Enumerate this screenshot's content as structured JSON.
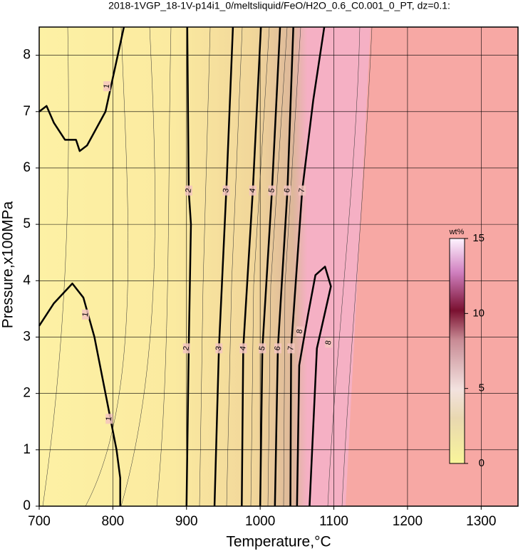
{
  "chart_data": {
    "type": "contour",
    "title": "2018-1VGP_18-1V-p14i1_0/meltsliquid/FeO/H2O_0.6_C0.001_0_PT, dz=0.1:",
    "xlabel": "Temperature,°C",
    "ylabel": "Pressure,x100MPa",
    "xlim": [
      700,
      1350
    ],
    "ylim": [
      0,
      8.5
    ],
    "xticks": [
      700,
      800,
      900,
      1000,
      1100,
      1200,
      1300
    ],
    "yticks": [
      0,
      1,
      2,
      3,
      4,
      5,
      6,
      7,
      8
    ],
    "grid": true,
    "contours": [
      {
        "level": 1,
        "x": [
          700,
          710,
          720,
          735,
          750,
          755,
          765,
          790,
          815
        ],
        "y": [
          7.0,
          7.1,
          6.8,
          6.5,
          6.5,
          6.3,
          6.4,
          7.0,
          8.5
        ]
      },
      {
        "level": 1,
        "x": [
          700,
          720,
          745,
          760,
          775,
          790,
          805,
          810,
          810
        ],
        "y": [
          3.2,
          3.6,
          3.95,
          3.7,
          3.0,
          2.0,
          1.0,
          0.5,
          0
        ]
      },
      {
        "level": 2,
        "x": [
          900,
          903,
          906,
          903,
          901
        ],
        "y": [
          0,
          2.8,
          5.0,
          5.6,
          8.5
        ]
      },
      {
        "level": 3,
        "x": [
          938,
          944,
          954,
          963
        ],
        "y": [
          0,
          2.8,
          5.6,
          8.5
        ]
      },
      {
        "level": 4,
        "x": [
          975,
          977,
          990,
          1001
        ],
        "y": [
          0,
          2.8,
          5.6,
          8.5
        ]
      },
      {
        "level": 5,
        "x": [
          1000,
          1003,
          1016,
          1027
        ],
        "y": [
          0,
          2.8,
          5.6,
          8.5
        ]
      },
      {
        "level": 6,
        "x": [
          1020,
          1024,
          1037,
          1045
        ],
        "y": [
          0,
          2.8,
          5.6,
          8.5
        ]
      },
      {
        "level": 7,
        "x": [
          1041,
          1042,
          1057,
          1072,
          1087
        ],
        "y": [
          0,
          2.8,
          5.6,
          7.2,
          8.5
        ]
      },
      {
        "level": 8,
        "x": [
          1067,
          1077,
          1096,
          1088,
          1075,
          1065,
          1053,
          1050
        ],
        "y": [
          0,
          2.8,
          3.9,
          4.25,
          4.1,
          3.4,
          2.5,
          0
        ]
      }
    ],
    "labels": [
      {
        "level": 1,
        "x": 792,
        "y": 7.45
      },
      {
        "level": 1,
        "x": 763,
        "y": 3.4
      },
      {
        "level": 1,
        "x": 795,
        "y": 1.55
      },
      {
        "level": 2,
        "x": 903,
        "y": 5.6
      },
      {
        "level": 2,
        "x": 900,
        "y": 2.8
      },
      {
        "level": 3,
        "x": 954,
        "y": 5.6
      },
      {
        "level": 3,
        "x": 944,
        "y": 2.8
      },
      {
        "level": 4,
        "x": 990,
        "y": 5.6
      },
      {
        "level": 4,
        "x": 977,
        "y": 2.8
      },
      {
        "level": 5,
        "x": 1016,
        "y": 5.6
      },
      {
        "level": 5,
        "x": 1003,
        "y": 2.8
      },
      {
        "level": 6,
        "x": 1037,
        "y": 5.6
      },
      {
        "level": 6,
        "x": 1024,
        "y": 2.8
      },
      {
        "level": 7,
        "x": 1057,
        "y": 5.6
      },
      {
        "level": 7,
        "x": 1042,
        "y": 2.8
      },
      {
        "level": 8,
        "x": 1054,
        "y": 3.1
      },
      {
        "level": 8,
        "x": 1093,
        "y": 2.9
      }
    ],
    "colorbar": {
      "label": "wt%",
      "lim": [
        0,
        15
      ],
      "ticks": [
        0,
        5,
        10,
        15
      ]
    }
  }
}
